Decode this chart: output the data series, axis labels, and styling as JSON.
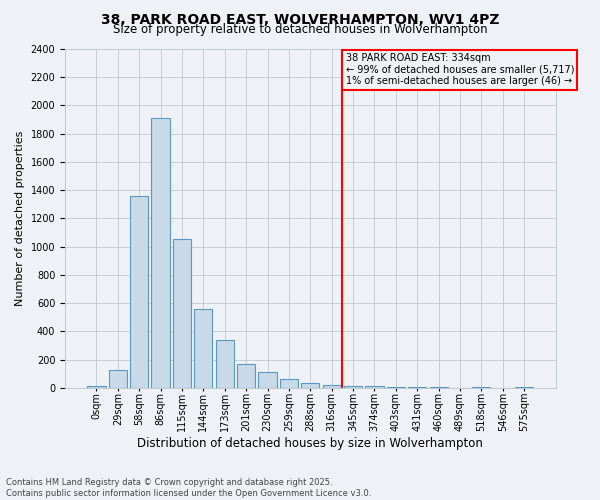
{
  "title": "38, PARK ROAD EAST, WOLVERHAMPTON, WV1 4PZ",
  "subtitle": "Size of property relative to detached houses in Wolverhampton",
  "xlabel": "Distribution of detached houses by size in Wolverhampton",
  "ylabel": "Number of detached properties",
  "footnote1": "Contains HM Land Registry data © Crown copyright and database right 2025.",
  "footnote2": "Contains public sector information licensed under the Open Government Licence v3.0.",
  "categories": [
    "0sqm",
    "29sqm",
    "58sqm",
    "86sqm",
    "115sqm",
    "144sqm",
    "173sqm",
    "201sqm",
    "230sqm",
    "259sqm",
    "288sqm",
    "316sqm",
    "345sqm",
    "374sqm",
    "403sqm",
    "431sqm",
    "460sqm",
    "489sqm",
    "518sqm",
    "546sqm",
    "575sqm"
  ],
  "values": [
    10,
    125,
    1360,
    1910,
    1055,
    560,
    335,
    170,
    110,
    60,
    35,
    20,
    10,
    10,
    5,
    2,
    2,
    0,
    5,
    0,
    5
  ],
  "bar_color": "#c9d9e8",
  "bar_edge_color": "#5a9abf",
  "bar_linewidth": 0.8,
  "grid_color": "#c0c8d0",
  "bg_color": "#eef2f7",
  "vline_x_index": 11.5,
  "vline_color": "red",
  "annotation_text": "38 PARK ROAD EAST: 334sqm\n← 99% of detached houses are smaller (5,717)\n1% of semi-detached houses are larger (46) →",
  "annotation_box_color": "red",
  "ylim": [
    0,
    2400
  ],
  "yticks": [
    0,
    200,
    400,
    600,
    800,
    1000,
    1200,
    1400,
    1600,
    1800,
    2000,
    2200,
    2400
  ],
  "title_fontsize": 10,
  "subtitle_fontsize": 8.5,
  "ylabel_fontsize": 8,
  "xlabel_fontsize": 8.5,
  "tick_fontsize": 7,
  "annot_fontsize": 7,
  "footnote_fontsize": 6
}
